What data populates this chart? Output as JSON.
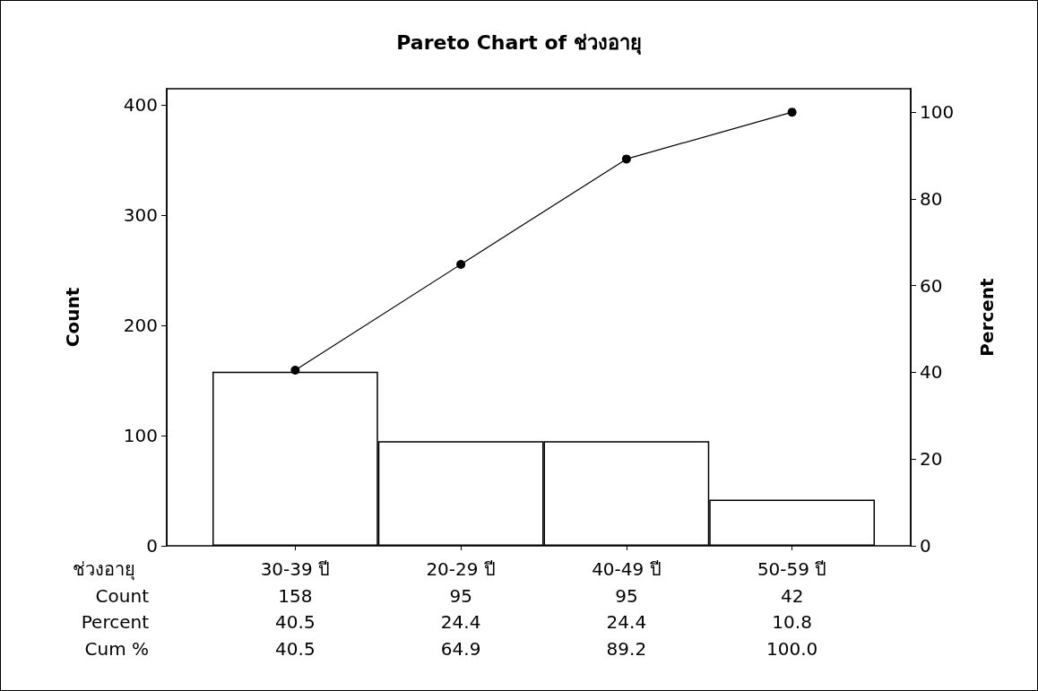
{
  "chart_data": {
    "type": "bar",
    "title": "Pareto Chart of ช่วงอายุ",
    "xlabel": "ช่วงอายุ",
    "ylabel": "Count",
    "y2label": "Percent",
    "categories": [
      "30-39 ปี",
      "20-29 ปี",
      "40-49 ปี",
      "50-59 ปี"
    ],
    "series": [
      {
        "color": "#ffffff",
        "values": [
          158,
          95,
          95,
          42
        ],
        "value_labels": [
          "158",
          "95",
          "95",
          "42"
        ]
      },
      {
        "type": "line",
        "axis": "y2",
        "color": "#000000",
        "values": [
          40.5,
          64.9,
          89.2,
          100.0
        ],
        "value_labels": [
          "40.5",
          "64.9",
          "89.2",
          "100.0"
        ]
      }
    ],
    "annotations": [
      "Count",
      "Percent",
      "40.5",
      "24.4",
      "24.4",
      "10.8",
      "Cum %"
    ],
    "ylim": [
      0,
      415
    ],
    "yticks": [
      0,
      100,
      200,
      300,
      400
    ],
    "y2lim": [
      0,
      105.4
    ],
    "y2ticks": [
      0,
      20,
      40,
      60,
      80,
      100
    ],
    "marker": "circle",
    "line_style": "solid"
  }
}
